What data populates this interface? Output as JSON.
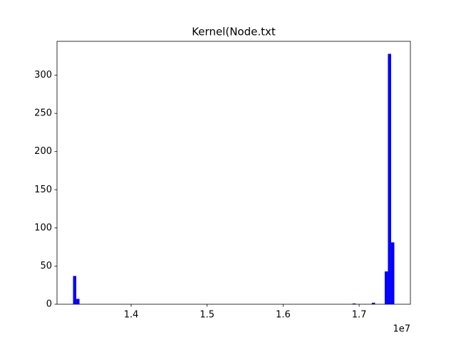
{
  "chart_data": {
    "type": "histogram",
    "title": "Kernel(Node.txt",
    "bins": [
      13236000,
      13278270,
      13320540,
      13362810,
      13405080,
      13447350,
      13489620,
      13531890,
      13574160,
      13616430,
      13658700,
      13700970,
      13743240,
      13785510,
      13827780,
      13870050,
      13912320,
      13954590,
      13996860,
      14039130,
      14081400,
      14123670,
      14165940,
      14208210,
      14250480,
      14292750,
      14335020,
      14377290,
      14419560,
      14461830,
      14504100,
      14546370,
      14588640,
      14630910,
      14673180,
      14715450,
      14757720,
      14799990,
      14842260,
      14884530,
      14926800,
      14969070,
      15011340,
      15053610,
      15095880,
      15138150,
      15180420,
      15222690,
      15264960,
      15307230,
      15349500,
      15391770,
      15434040,
      15476310,
      15518580,
      15560850,
      15603120,
      15645390,
      15687660,
      15729930,
      15772200,
      15814470,
      15856740,
      15899010,
      15941280,
      15983550,
      16025820,
      16068090,
      16110360,
      16152630,
      16194900,
      16237170,
      16279440,
      16321710,
      16363980,
      16406250,
      16448520,
      16490790,
      16533060,
      16575330,
      16617600,
      16659870,
      16702140,
      16744410,
      16786680,
      16828950,
      16871220,
      16913490,
      16955760,
      16998030,
      17040300,
      17082570,
      17124840,
      17167110,
      17209380,
      17251650,
      17293920,
      17336190,
      17378460,
      17420730,
      17463000
    ],
    "counts": [
      37,
      7,
      0,
      0,
      0,
      0,
      0,
      0,
      0,
      0,
      0,
      0,
      0,
      0,
      0,
      0,
      0,
      0,
      0,
      0,
      0,
      0,
      0,
      0,
      0,
      0,
      0,
      0,
      0,
      0,
      0,
      0,
      0,
      0,
      0,
      0,
      0,
      0,
      0,
      0,
      0,
      0,
      0,
      0,
      0,
      0,
      0,
      0,
      0,
      0,
      0,
      0,
      0,
      0,
      0,
      0,
      0,
      0,
      0,
      0,
      0,
      0,
      0,
      0,
      0,
      0,
      0,
      0,
      0,
      0,
      0,
      0,
      0,
      0,
      0,
      0,
      0,
      0,
      0,
      0,
      0,
      0,
      0,
      0,
      0,
      0,
      0,
      1,
      0,
      0,
      0,
      0,
      0,
      2,
      0,
      0,
      0,
      43,
      328,
      81
    ],
    "color": "#0000ff",
    "xlim": [
      13024650,
      17674350
    ],
    "xticks": [
      {
        "value": 14000000,
        "label": "1.4"
      },
      {
        "value": 15000000,
        "label": "1.5"
      },
      {
        "value": 16000000,
        "label": "1.6"
      },
      {
        "value": 17000000,
        "label": "1.7"
      }
    ],
    "x_offset_label": "1e7",
    "ylim": [
      0,
      344.4
    ],
    "yticks": [
      0,
      50,
      100,
      150,
      200,
      250,
      300
    ],
    "grid": false
  }
}
